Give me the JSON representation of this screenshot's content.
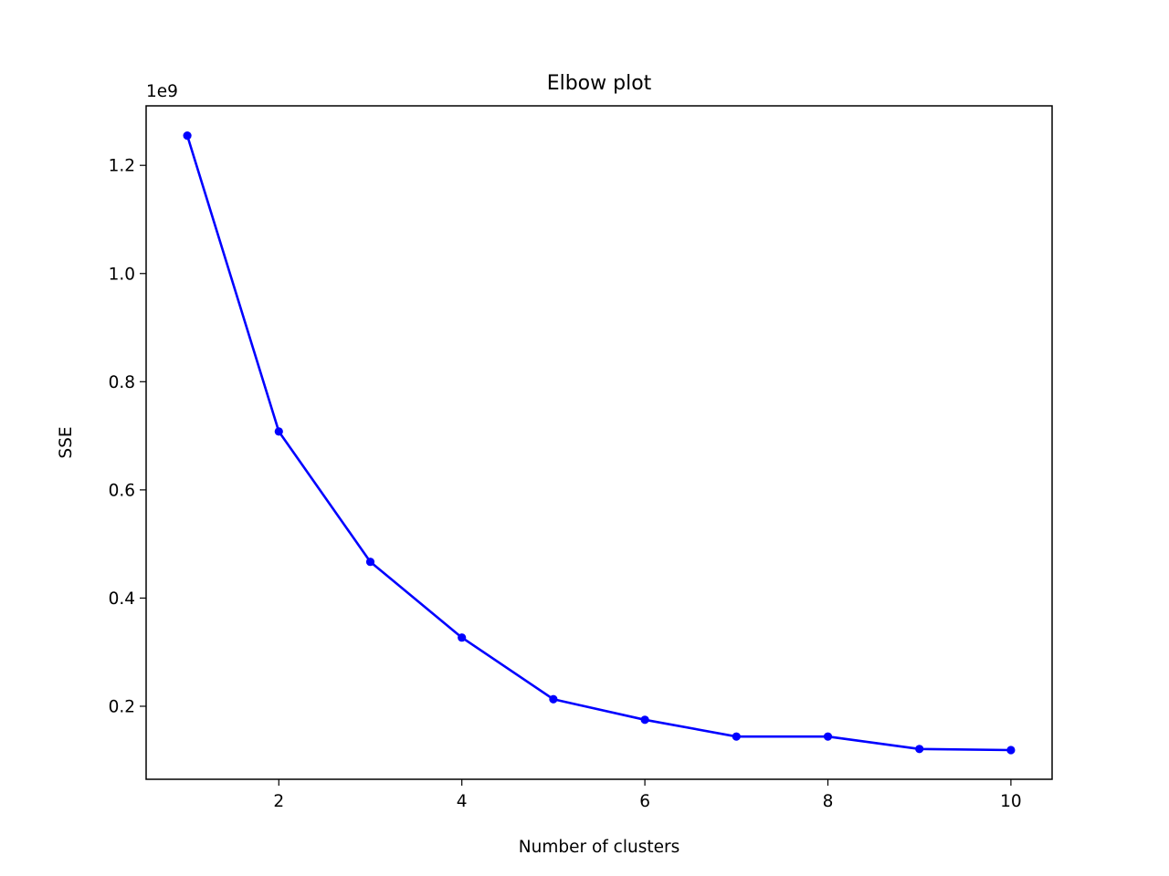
{
  "chart_data": {
    "type": "line",
    "title": "Elbow plot",
    "xlabel": "Number of clusters",
    "ylabel": "SSE",
    "y_multiplier": "1e9",
    "xlim": [
      0.55,
      10.45
    ],
    "ylim": [
      0.065,
      1.31
    ],
    "x_ticks": [
      {
        "value": 2,
        "label": "2"
      },
      {
        "value": 4,
        "label": "4"
      },
      {
        "value": 6,
        "label": "6"
      },
      {
        "value": 8,
        "label": "8"
      },
      {
        "value": 10,
        "label": "10"
      }
    ],
    "y_ticks": [
      {
        "value": 0.2,
        "label": "0.2"
      },
      {
        "value": 0.4,
        "label": "0.4"
      },
      {
        "value": 0.6,
        "label": "0.6"
      },
      {
        "value": 0.8,
        "label": "0.8"
      },
      {
        "value": 1.0,
        "label": "1.0"
      },
      {
        "value": 1.2,
        "label": "1.2"
      }
    ],
    "grid": false,
    "series": [
      {
        "color": "#0000ff",
        "marker": "circle",
        "x": [
          1,
          2,
          3,
          4,
          5,
          6,
          7,
          8,
          9,
          10
        ],
        "y": [
          1.255,
          0.708,
          0.467,
          0.327,
          0.213,
          0.175,
          0.144,
          0.144,
          0.121,
          0.119
        ]
      }
    ]
  }
}
